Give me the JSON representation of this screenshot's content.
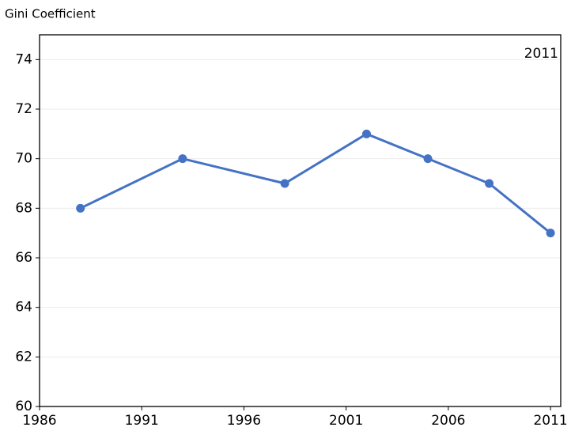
{
  "chart_data": {
    "type": "line",
    "y_label": "Gini Coefficient",
    "annotation": "2011",
    "x": [
      1988,
      1993,
      1998,
      2002,
      2005,
      2008,
      2011
    ],
    "series": [
      {
        "name": "Gini Coefficient",
        "color": "#4472c4",
        "values": [
          68,
          70,
          69,
          71,
          70,
          69,
          67
        ]
      }
    ],
    "xlim": [
      1986,
      2011.5
    ],
    "xticks": [
      1986,
      1991,
      1996,
      2001,
      2006,
      2011
    ],
    "ylim": [
      60,
      75
    ],
    "yticks": [
      60,
      62,
      64,
      66,
      68,
      70,
      72,
      74
    ],
    "grid": true
  }
}
